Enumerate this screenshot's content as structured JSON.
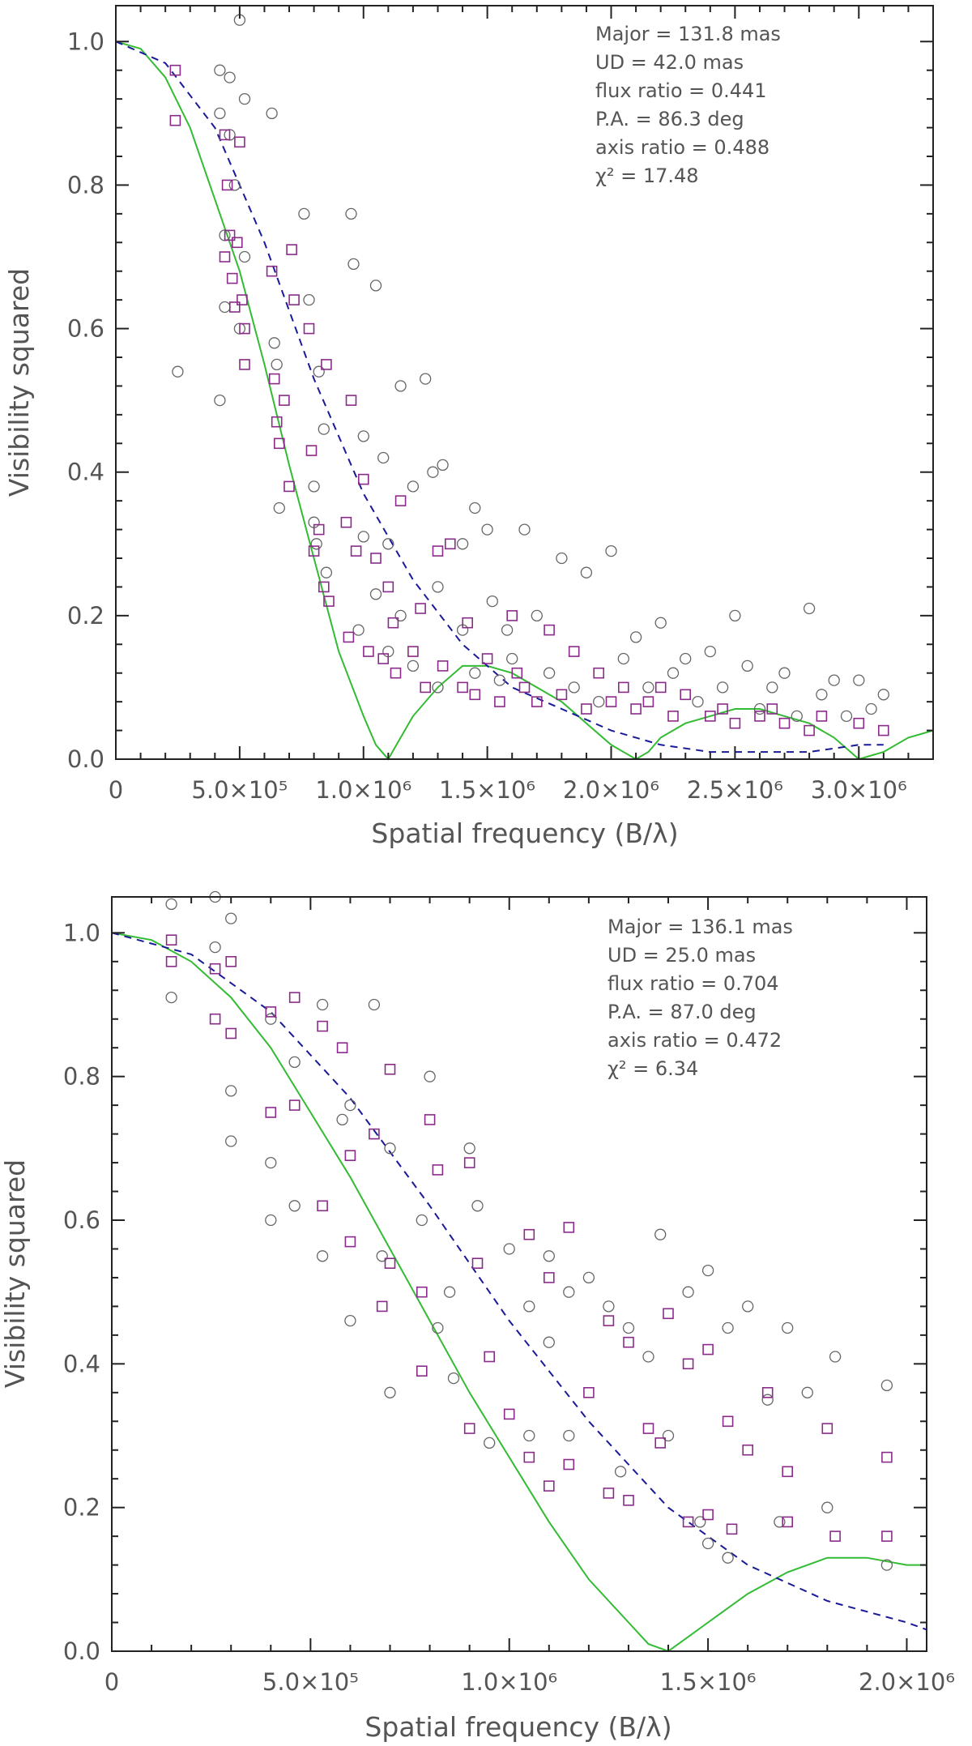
{
  "chart_data": [
    {
      "type": "scatter",
      "title": "",
      "xlabel": "Spatial frequency (B/λ)",
      "ylabel": "Visibility squared",
      "xlim": [
        0,
        3300000
      ],
      "ylim": [
        0,
        1.05
      ],
      "x_tick_labels": [
        {
          "value": 0,
          "text": "0"
        },
        {
          "value": 500000,
          "text": "5.0×10⁵"
        },
        {
          "value": 1000000,
          "text": "1.0×10⁶"
        },
        {
          "value": 1500000,
          "text": "1.5×10⁶"
        },
        {
          "value": 2000000,
          "text": "2.0×10⁶"
        },
        {
          "value": 2500000,
          "text": "2.5×10⁶"
        },
        {
          "value": 3000000,
          "text": "3.0×10⁶"
        }
      ],
      "y_tick_labels": [
        {
          "value": 0.0,
          "text": "0.0"
        },
        {
          "value": 0.2,
          "text": "0.2"
        },
        {
          "value": 0.4,
          "text": "0.4"
        },
        {
          "value": 0.6,
          "text": "0.6"
        },
        {
          "value": 0.8,
          "text": "0.8"
        },
        {
          "value": 1.0,
          "text": "1.0"
        }
      ],
      "annotations": [
        "Major = 131.8 mas",
        "UD = 42.0 mas",
        "flux ratio = 0.441",
        "P.A. = 86.3 deg",
        "axis ratio = 0.488",
        "χ² = 17.48"
      ],
      "annotation_position": "top-right",
      "series": [
        {
          "name": "data (circles)",
          "marker": "circle",
          "color": "#666666",
          "x": [
            250000,
            420000,
            420000,
            420000,
            440000,
            440000,
            460000,
            460000,
            480000,
            500000,
            500000,
            520000,
            520000,
            630000,
            640000,
            650000,
            660000,
            760000,
            780000,
            800000,
            800000,
            810000,
            820000,
            840000,
            850000,
            950000,
            960000,
            980000,
            1000000,
            1000000,
            1050000,
            1050000,
            1080000,
            1100000,
            1100000,
            1150000,
            1150000,
            1200000,
            1200000,
            1250000,
            1280000,
            1300000,
            1300000,
            1320000,
            1400000,
            1400000,
            1450000,
            1450000,
            1500000,
            1520000,
            1550000,
            1580000,
            1600000,
            1650000,
            1700000,
            1750000,
            1800000,
            1850000,
            1900000,
            1950000,
            2000000,
            2050000,
            2100000,
            2150000,
            2200000,
            2250000,
            2300000,
            2350000,
            2400000,
            2450000,
            2500000,
            2550000,
            2600000,
            2650000,
            2700000,
            2750000,
            2800000,
            2850000,
            2900000,
            2950000,
            3000000,
            3050000,
            3100000
          ],
          "y": [
            0.54,
            0.96,
            0.9,
            0.5,
            0.73,
            0.63,
            0.95,
            0.87,
            0.8,
            0.6,
            1.03,
            0.92,
            0.7,
            0.9,
            0.58,
            0.55,
            0.35,
            0.76,
            0.64,
            0.38,
            0.33,
            0.3,
            0.54,
            0.46,
            0.26,
            0.76,
            0.69,
            0.18,
            0.45,
            0.31,
            0.66,
            0.23,
            0.42,
            0.15,
            0.3,
            0.52,
            0.2,
            0.38,
            0.13,
            0.53,
            0.4,
            0.24,
            0.1,
            0.41,
            0.3,
            0.18,
            0.35,
            0.12,
            0.32,
            0.22,
            0.11,
            0.18,
            0.14,
            0.32,
            0.2,
            0.12,
            0.28,
            0.1,
            0.26,
            0.08,
            0.29,
            0.14,
            0.17,
            0.1,
            0.19,
            0.12,
            0.14,
            0.08,
            0.15,
            0.1,
            0.2,
            0.13,
            0.07,
            0.1,
            0.12,
            0.06,
            0.21,
            0.09,
            0.11,
            0.06,
            0.11,
            0.07,
            0.09
          ]
        },
        {
          "name": "data (squares)",
          "marker": "square",
          "color": "#8a2b8a",
          "x": [
            240000,
            240000,
            440000,
            440000,
            450000,
            460000,
            470000,
            480000,
            490000,
            500000,
            510000,
            520000,
            520000,
            630000,
            640000,
            650000,
            660000,
            680000,
            700000,
            710000,
            720000,
            780000,
            790000,
            800000,
            820000,
            840000,
            850000,
            860000,
            930000,
            940000,
            950000,
            970000,
            1000000,
            1020000,
            1050000,
            1080000,
            1100000,
            1120000,
            1130000,
            1150000,
            1200000,
            1230000,
            1250000,
            1300000,
            1320000,
            1350000,
            1400000,
            1420000,
            1450000,
            1500000,
            1550000,
            1600000,
            1620000,
            1650000,
            1700000,
            1750000,
            1800000,
            1850000,
            1900000,
            1950000,
            2000000,
            2050000,
            2100000,
            2150000,
            2200000,
            2250000,
            2300000,
            2400000,
            2450000,
            2500000,
            2600000,
            2650000,
            2700000,
            2800000,
            2850000,
            3000000,
            3100000
          ],
          "y": [
            0.96,
            0.89,
            0.87,
            0.7,
            0.8,
            0.73,
            0.67,
            0.63,
            0.72,
            0.86,
            0.64,
            0.6,
            0.55,
            0.68,
            0.53,
            0.47,
            0.44,
            0.5,
            0.38,
            0.71,
            0.64,
            0.6,
            0.43,
            0.29,
            0.32,
            0.24,
            0.55,
            0.22,
            0.33,
            0.17,
            0.5,
            0.29,
            0.39,
            0.15,
            0.28,
            0.14,
            0.24,
            0.19,
            0.12,
            0.36,
            0.15,
            0.21,
            0.1,
            0.29,
            0.13,
            0.3,
            0.1,
            0.19,
            0.09,
            0.14,
            0.08,
            0.2,
            0.12,
            0.1,
            0.08,
            0.18,
            0.09,
            0.15,
            0.07,
            0.12,
            0.08,
            0.1,
            0.07,
            0.08,
            0.1,
            0.06,
            0.09,
            0.06,
            0.07,
            0.05,
            0.06,
            0.07,
            0.05,
            0.04,
            0.06,
            0.05,
            0.04
          ]
        },
        {
          "name": "model (solid)",
          "style": "solid",
          "color": "#33bb33",
          "x": [
            0,
            100000,
            200000,
            300000,
            400000,
            500000,
            600000,
            700000,
            800000,
            900000,
            1000000,
            1050000,
            1100000,
            1150000,
            1200000,
            1300000,
            1400000,
            1500000,
            1600000,
            1700000,
            1800000,
            1900000,
            2000000,
            2100000,
            2150000,
            2200000,
            2300000,
            2400000,
            2500000,
            2600000,
            2700000,
            2800000,
            2900000,
            3000000,
            3100000,
            3200000,
            3300000
          ],
          "y": [
            1.0,
            0.99,
            0.95,
            0.88,
            0.78,
            0.68,
            0.55,
            0.41,
            0.28,
            0.15,
            0.06,
            0.02,
            0.0,
            0.03,
            0.06,
            0.1,
            0.13,
            0.13,
            0.12,
            0.1,
            0.08,
            0.05,
            0.02,
            0.0,
            0.01,
            0.03,
            0.05,
            0.06,
            0.07,
            0.07,
            0.06,
            0.05,
            0.03,
            0.0,
            0.01,
            0.03,
            0.04
          ]
        },
        {
          "name": "model (dashed)",
          "style": "dashed",
          "color": "#1a1a99",
          "x": [
            0,
            200000,
            400000,
            600000,
            800000,
            1000000,
            1200000,
            1400000,
            1600000,
            1800000,
            2000000,
            2200000,
            2400000,
            2600000,
            2800000,
            3000000,
            3100000
          ],
          "y": [
            1.0,
            0.97,
            0.88,
            0.72,
            0.53,
            0.37,
            0.25,
            0.16,
            0.1,
            0.07,
            0.04,
            0.02,
            0.01,
            0.01,
            0.01,
            0.02,
            0.02
          ]
        }
      ]
    },
    {
      "type": "scatter",
      "title": "",
      "xlabel": "Spatial frequency (B/λ)",
      "ylabel": "Visibility squared",
      "xlim": [
        0,
        2050000
      ],
      "ylim": [
        0,
        1.05
      ],
      "x_tick_labels": [
        {
          "value": 0,
          "text": "0"
        },
        {
          "value": 500000,
          "text": "5.0×10⁵"
        },
        {
          "value": 1000000,
          "text": "1.0×10⁶"
        },
        {
          "value": 1500000,
          "text": "1.5×10⁶"
        },
        {
          "value": 2000000,
          "text": "2.0×10⁶"
        }
      ],
      "y_tick_labels": [
        {
          "value": 0.0,
          "text": "0.0"
        },
        {
          "value": 0.2,
          "text": "0.2"
        },
        {
          "value": 0.4,
          "text": "0.4"
        },
        {
          "value": 0.6,
          "text": "0.6"
        },
        {
          "value": 0.8,
          "text": "0.8"
        },
        {
          "value": 1.0,
          "text": "1.0"
        }
      ],
      "annotations": [
        "Major = 136.1 mas",
        "UD = 25.0 mas",
        "flux ratio = 0.704",
        "P.A. = 87.0 deg",
        "axis ratio = 0.472",
        "χ² = 6.34"
      ],
      "annotation_position": "top-right",
      "series": [
        {
          "name": "data (circles)",
          "marker": "circle",
          "color": "#666666",
          "x": [
            150000,
            150000,
            260000,
            260000,
            300000,
            300000,
            300000,
            400000,
            400000,
            400000,
            460000,
            460000,
            530000,
            530000,
            580000,
            600000,
            600000,
            660000,
            680000,
            700000,
            700000,
            780000,
            800000,
            820000,
            850000,
            860000,
            900000,
            920000,
            950000,
            1000000,
            1050000,
            1050000,
            1100000,
            1100000,
            1150000,
            1150000,
            1200000,
            1250000,
            1280000,
            1300000,
            1350000,
            1380000,
            1400000,
            1450000,
            1480000,
            1500000,
            1500000,
            1550000,
            1550000,
            1600000,
            1650000,
            1680000,
            1700000,
            1750000,
            1800000,
            1820000,
            1950000,
            1950000
          ],
          "y": [
            1.04,
            0.91,
            1.05,
            0.98,
            1.02,
            0.78,
            0.71,
            0.88,
            0.68,
            0.6,
            0.82,
            0.62,
            0.9,
            0.55,
            0.74,
            0.76,
            0.46,
            0.9,
            0.55,
            0.7,
            0.36,
            0.6,
            0.8,
            0.45,
            0.5,
            0.38,
            0.7,
            0.62,
            0.29,
            0.56,
            0.48,
            0.3,
            0.55,
            0.43,
            0.5,
            0.3,
            0.52,
            0.48,
            0.25,
            0.45,
            0.41,
            0.58,
            0.3,
            0.5,
            0.18,
            0.53,
            0.15,
            0.45,
            0.13,
            0.48,
            0.35,
            0.18,
            0.45,
            0.36,
            0.2,
            0.41,
            0.37,
            0.12
          ],
          "_note": "approximate subset"
        },
        {
          "name": "data (squares)",
          "marker": "square",
          "color": "#8a2b8a",
          "x": [
            150000,
            150000,
            260000,
            260000,
            300000,
            300000,
            400000,
            400000,
            460000,
            460000,
            530000,
            530000,
            580000,
            600000,
            600000,
            660000,
            680000,
            700000,
            700000,
            780000,
            780000,
            800000,
            820000,
            900000,
            900000,
            920000,
            950000,
            1000000,
            1050000,
            1050000,
            1100000,
            1100000,
            1150000,
            1150000,
            1200000,
            1250000,
            1250000,
            1300000,
            1300000,
            1350000,
            1380000,
            1400000,
            1450000,
            1450000,
            1500000,
            1500000,
            1550000,
            1560000,
            1600000,
            1650000,
            1700000,
            1700000,
            1800000,
            1820000,
            1950000,
            1950000
          ],
          "y": [
            0.99,
            0.96,
            0.95,
            0.88,
            0.96,
            0.86,
            0.89,
            0.75,
            0.91,
            0.76,
            0.87,
            0.62,
            0.84,
            0.69,
            0.57,
            0.72,
            0.48,
            0.81,
            0.54,
            0.5,
            0.39,
            0.74,
            0.67,
            0.68,
            0.31,
            0.54,
            0.41,
            0.33,
            0.58,
            0.27,
            0.52,
            0.23,
            0.59,
            0.26,
            0.36,
            0.46,
            0.22,
            0.43,
            0.21,
            0.31,
            0.29,
            0.47,
            0.4,
            0.18,
            0.42,
            0.19,
            0.32,
            0.17,
            0.28,
            0.36,
            0.25,
            0.18,
            0.31,
            0.16,
            0.27,
            0.16
          ]
        },
        {
          "name": "model (solid)",
          "style": "solid",
          "color": "#33bb33",
          "x": [
            0,
            100000,
            200000,
            300000,
            400000,
            500000,
            600000,
            700000,
            800000,
            900000,
            1000000,
            1100000,
            1200000,
            1300000,
            1350000,
            1400000,
            1450000,
            1500000,
            1600000,
            1700000,
            1800000,
            1900000,
            2000000,
            2050000
          ],
          "y": [
            1.0,
            0.99,
            0.96,
            0.91,
            0.84,
            0.75,
            0.66,
            0.56,
            0.46,
            0.36,
            0.27,
            0.18,
            0.1,
            0.04,
            0.01,
            0.0,
            0.02,
            0.04,
            0.08,
            0.11,
            0.13,
            0.13,
            0.12,
            0.12
          ]
        },
        {
          "name": "model (dashed)",
          "style": "dashed",
          "color": "#1a1a99",
          "x": [
            0,
            200000,
            400000,
            600000,
            800000,
            1000000,
            1200000,
            1400000,
            1600000,
            1800000,
            2000000,
            2050000
          ],
          "y": [
            1.0,
            0.97,
            0.89,
            0.77,
            0.62,
            0.46,
            0.32,
            0.2,
            0.12,
            0.07,
            0.04,
            0.03
          ]
        }
      ]
    }
  ]
}
